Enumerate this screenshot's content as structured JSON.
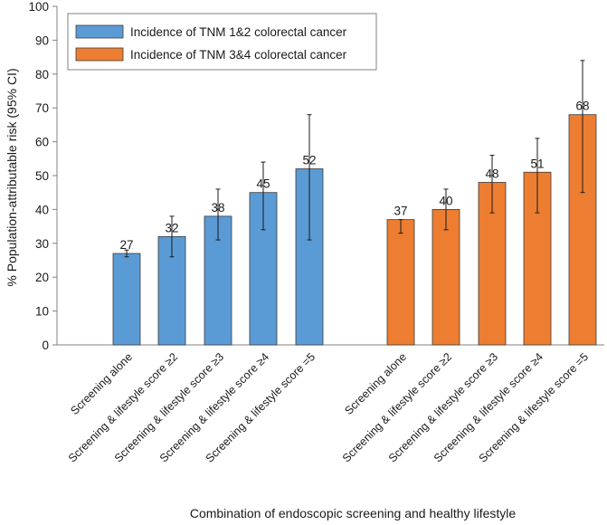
{
  "chart_data": {
    "type": "bar",
    "title": "",
    "xlabel": "Combination of endoscopic screening and healthy lifestyle",
    "ylabel": "% Population-attributable risk (95% CI)",
    "ylim": [
      0,
      100
    ],
    "yticks": [
      0,
      10,
      20,
      30,
      40,
      50,
      60,
      70,
      80,
      90,
      100
    ],
    "grid": false,
    "legend_position": "top-left",
    "series": [
      {
        "name": "Incidence of TNM 1&2 colorectal cancer",
        "color": "#5b9bd5",
        "categories": [
          "Screening alone",
          "Screening & lifestyle score ≥2",
          "Screening & lifestyle score ≥3",
          "Screening & lifestyle score ≥4",
          "Screening & lifestyle score =5"
        ],
        "values": [
          27,
          32,
          38,
          45,
          52
        ],
        "ci_lower": [
          26,
          26,
          31,
          34,
          31
        ],
        "ci_upper": [
          28,
          38,
          46,
          54,
          68
        ]
      },
      {
        "name": "Incidence of TNM 3&4 colorectal cancer",
        "color": "#ed7d31",
        "categories": [
          "Screening alone",
          "Screening & lifestyle score ≥2",
          "Screening & lifestyle score ≥3",
          "Screening & lifestyle score ≥4",
          "Screening & lifestyle score =5"
        ],
        "values": [
          37,
          40,
          48,
          51,
          68
        ],
        "ci_lower": [
          33,
          34,
          39,
          39,
          45
        ],
        "ci_upper": [
          37,
          46,
          56,
          61,
          84
        ]
      }
    ]
  }
}
